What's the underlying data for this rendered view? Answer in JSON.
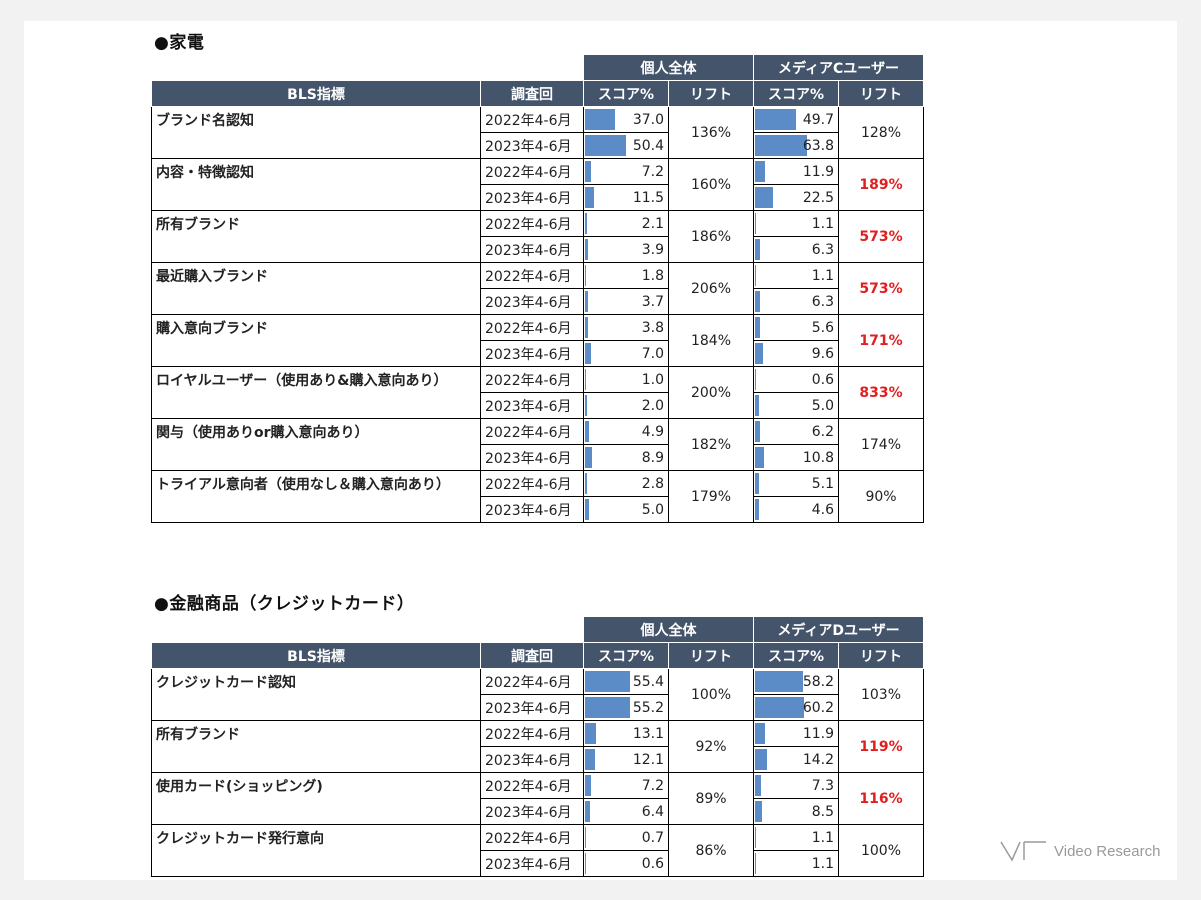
{
  "section1": {
    "title": "●家電",
    "group_a": "個人全体",
    "group_b": "メディアCユーザー",
    "col_metric": "BLS指標",
    "col_survey": "調査回",
    "col_score": "スコア%",
    "col_lift": "リフト",
    "rows": [
      {
        "name": "ブランド名認知",
        "d1": "2022年4-6月",
        "d2": "2023年4-6月",
        "a1": "37.0",
        "a2": "50.4",
        "a_lift": "136%",
        "b1": "49.7",
        "b2": "63.8",
        "b_lift": "128%",
        "hi": false
      },
      {
        "name": "内容・特徴認知",
        "d1": "2022年4-6月",
        "d2": "2023年4-6月",
        "a1": "7.2",
        "a2": "11.5",
        "a_lift": "160%",
        "b1": "11.9",
        "b2": "22.5",
        "b_lift": "189%",
        "hi": true
      },
      {
        "name": "所有ブランド",
        "d1": "2022年4-6月",
        "d2": "2023年4-6月",
        "a1": "2.1",
        "a2": "3.9",
        "a_lift": "186%",
        "b1": "1.1",
        "b2": "6.3",
        "b_lift": "573%",
        "hi": true
      },
      {
        "name": "最近購入ブランド",
        "d1": "2022年4-6月",
        "d2": "2023年4-6月",
        "a1": "1.8",
        "a2": "3.7",
        "a_lift": "206%",
        "b1": "1.1",
        "b2": "6.3",
        "b_lift": "573%",
        "hi": true
      },
      {
        "name": "購入意向ブランド",
        "d1": "2022年4-6月",
        "d2": "2023年4-6月",
        "a1": "3.8",
        "a2": "7.0",
        "a_lift": "184%",
        "b1": "5.6",
        "b2": "9.6",
        "b_lift": "171%",
        "hi": true
      },
      {
        "name": "ロイヤルユーザー（使用あり&購入意向あり）",
        "d1": "2022年4-6月",
        "d2": "2023年4-6月",
        "a1": "1.0",
        "a2": "2.0",
        "a_lift": "200%",
        "b1": "0.6",
        "b2": "5.0",
        "b_lift": "833%",
        "hi": true
      },
      {
        "name": "関与（使用ありor購入意向あり）",
        "d1": "2022年4-6月",
        "d2": "2023年4-6月",
        "a1": "4.9",
        "a2": "8.9",
        "a_lift": "182%",
        "b1": "6.2",
        "b2": "10.8",
        "b_lift": "174%",
        "hi": false
      },
      {
        "name": "トライアル意向者（使用なし＆購入意向あり）",
        "d1": "2022年4-6月",
        "d2": "2023年4-6月",
        "a1": "2.8",
        "a2": "5.0",
        "a_lift": "179%",
        "b1": "5.1",
        "b2": "4.6",
        "b_lift": "90%",
        "hi": false
      }
    ]
  },
  "section2": {
    "title": "●金融商品（クレジットカード）",
    "group_a": "個人全体",
    "group_b": "メディアDユーザー",
    "col_metric": "BLS指標",
    "col_survey": "調査回",
    "col_score": "スコア%",
    "col_lift": "リフト",
    "rows": [
      {
        "name": "クレジットカード認知",
        "d1": "2022年4-6月",
        "d2": "2023年4-6月",
        "a1": "55.4",
        "a2": "55.2",
        "a_lift": "100%",
        "b1": "58.2",
        "b2": "60.2",
        "b_lift": "103%",
        "hi": false
      },
      {
        "name": "所有ブランド",
        "d1": "2022年4-6月",
        "d2": "2023年4-6月",
        "a1": "13.1",
        "a2": "12.1",
        "a_lift": "92%",
        "b1": "11.9",
        "b2": "14.2",
        "b_lift": "119%",
        "hi": true
      },
      {
        "name": "使用カード(ショッピング)",
        "d1": "2022年4-6月",
        "d2": "2023年4-6月",
        "a1": "7.2",
        "a2": "6.4",
        "a_lift": "89%",
        "b1": "7.3",
        "b2": "8.5",
        "b_lift": "116%",
        "hi": true
      },
      {
        "name": "クレジットカード発行意向",
        "d1": "2022年4-6月",
        "d2": "2023年4-6月",
        "a1": "0.7",
        "a2": "0.6",
        "a_lift": "86%",
        "b1": "1.1",
        "b2": "1.1",
        "b_lift": "100%",
        "hi": false
      }
    ]
  },
  "logo_text": "Video Research",
  "colors": {
    "header": "#44546a",
    "bar": "#5b8cc8",
    "highlight": "#e02020"
  }
}
